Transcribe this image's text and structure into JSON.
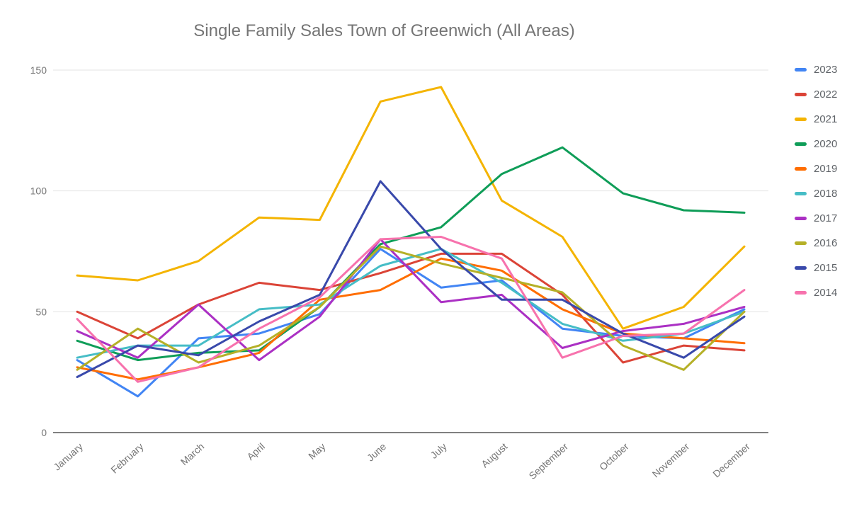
{
  "title": "Single Family Sales Town of Greenwich (All Areas)",
  "colors": {
    "background": "#ffffff",
    "grid": "#e3e3e3",
    "axis_line": "#808080",
    "title_text": "#757575",
    "tick_text": "#757575",
    "legend_text": "#5f6368"
  },
  "chart_data": {
    "type": "line",
    "title": "Single Family Sales Town of Greenwich (All Areas)",
    "categories": [
      "January",
      "February",
      "March",
      "April",
      "May",
      "June",
      "July",
      "August",
      "September",
      "October",
      "November",
      "December"
    ],
    "ylim": [
      0,
      150
    ],
    "yticks": [
      0,
      50,
      100,
      150
    ],
    "grid": true,
    "legend_position": "right",
    "x_label_rotation_deg": -42,
    "series": [
      {
        "name": "2023",
        "color": "#4285f4",
        "values": [
          30,
          15,
          39,
          41,
          49,
          76,
          60,
          63,
          43,
          40,
          39,
          51
        ]
      },
      {
        "name": "2022",
        "color": "#db4437",
        "values": [
          50,
          39,
          53,
          62,
          59,
          66,
          74,
          74,
          57,
          29,
          36,
          34
        ]
      },
      {
        "name": "2021",
        "color": "#f4b400",
        "values": [
          65,
          63,
          71,
          89,
          88,
          137,
          143,
          96,
          81,
          43,
          52,
          77
        ]
      },
      {
        "name": "2020",
        "color": "#0f9d58",
        "values": [
          38,
          30,
          33,
          34,
          52,
          78,
          85,
          107,
          118,
          99,
          92,
          91
        ]
      },
      {
        "name": "2019",
        "color": "#ff6d01",
        "values": [
          27,
          22,
          27,
          33,
          55,
          59,
          72,
          67,
          51,
          41,
          39,
          37
        ]
      },
      {
        "name": "2018",
        "color": "#46bdc6",
        "values": [
          31,
          36,
          36,
          51,
          53,
          69,
          76,
          62,
          45,
          38,
          41,
          50
        ]
      },
      {
        "name": "2017",
        "color": "#ab30c4",
        "values": [
          42,
          31,
          53,
          30,
          48,
          80,
          54,
          57,
          35,
          42,
          45,
          52
        ]
      },
      {
        "name": "2016",
        "color": "#b5b027",
        "values": [
          26,
          43,
          29,
          36,
          52,
          77,
          70,
          64,
          58,
          36,
          26,
          50
        ]
      },
      {
        "name": "2015",
        "color": "#3949ab",
        "values": [
          23,
          36,
          32,
          46,
          57,
          104,
          76,
          55,
          55,
          41,
          31,
          48
        ]
      },
      {
        "name": "2014",
        "color": "#f772ad",
        "values": [
          47,
          21,
          27,
          43,
          56,
          80,
          81,
          72,
          31,
          40,
          41,
          59
        ]
      }
    ]
  }
}
